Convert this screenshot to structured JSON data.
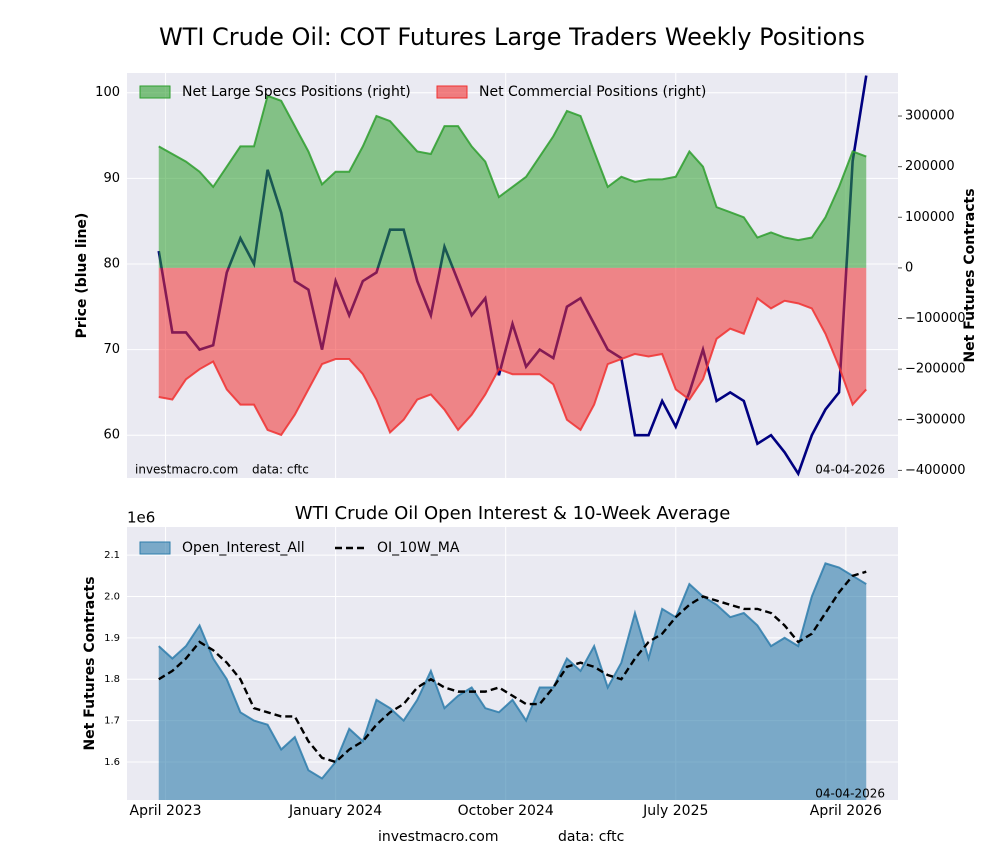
{
  "title": "WTI Crude Oil: COT Futures Large Traders Weekly Positions",
  "footer": [
    "investmacro.com",
    "data: cftc"
  ],
  "chart_data": [
    {
      "type": "line",
      "y_label": "Price (blue line)",
      "y2_label": "Net Futures Contracts",
      "watermark": [
        "investmacro.com",
        "data: cftc",
        "04-04-2026"
      ],
      "x": [
        2023.22,
        2023.28,
        2023.34,
        2023.4,
        2023.46,
        2023.52,
        2023.58,
        2023.64,
        2023.7,
        2023.76,
        2023.82,
        2023.88,
        2023.94,
        2024.0,
        2024.06,
        2024.12,
        2024.18,
        2024.24,
        2024.3,
        2024.36,
        2024.42,
        2024.48,
        2024.54,
        2024.6,
        2024.66,
        2024.72,
        2024.78,
        2024.84,
        2024.9,
        2024.96,
        2025.02,
        2025.08,
        2025.14,
        2025.2,
        2025.26,
        2025.32,
        2025.38,
        2025.44,
        2025.5,
        2025.56,
        2025.62,
        2025.68,
        2025.74,
        2025.8,
        2025.86,
        2025.92,
        2025.98,
        2026.04,
        2026.1,
        2026.16,
        2026.22,
        2026.28,
        2026.34
      ],
      "xlim": [
        2023.08,
        2026.48
      ],
      "xticks": [
        2023.25,
        2024.0,
        2024.75,
        2025.5,
        2026.25
      ],
      "ylim": [
        55,
        102.3
      ],
      "yticks": [
        60,
        70,
        80,
        90,
        100
      ],
      "y2lim": [
        -415000,
        385000
      ],
      "y2ticks": [
        {
          "value": -400000,
          "label": "−400000"
        },
        {
          "value": -300000,
          "label": "−300000"
        },
        {
          "value": -200000,
          "label": "−200000"
        },
        {
          "value": -100000,
          "label": "−100000"
        },
        0,
        100000,
        200000,
        300000
      ],
      "grid": true,
      "legend": "upper left",
      "price": {
        "color": "#000080",
        "values": [
          81.5,
          72,
          72,
          70,
          70.5,
          79,
          83,
          80,
          91,
          86,
          78,
          77,
          70,
          78,
          74,
          78,
          79,
          84,
          84,
          78,
          74,
          82,
          78,
          74,
          76,
          67,
          73,
          68,
          70,
          69,
          75,
          76,
          73,
          70,
          69,
          60,
          60,
          64,
          61,
          65,
          70,
          64,
          65,
          64,
          59,
          60,
          58,
          55.5,
          60,
          63,
          65,
          92,
          102
        ]
      },
      "series": [
        {
          "name": "Net Large Specs Positions (right)",
          "color": "#2e9e2e",
          "axis": "y2",
          "values": [
            240000,
            225000,
            210000,
            190000,
            160000,
            200000,
            240000,
            240000,
            340000,
            330000,
            280000,
            230000,
            165000,
            190000,
            190000,
            240000,
            300000,
            290000,
            260000,
            230000,
            225000,
            280000,
            280000,
            240000,
            210000,
            140000,
            160000,
            180000,
            220000,
            260000,
            310000,
            300000,
            230000,
            160000,
            180000,
            170000,
            175000,
            175000,
            180000,
            230000,
            200000,
            120000,
            110000,
            100000,
            60000,
            70000,
            60000,
            55000,
            60000,
            100000,
            160000,
            230000,
            220000
          ]
        },
        {
          "name": "Net Commercial Positions (right)",
          "color": "#f03030",
          "axis": "y2",
          "values": [
            -255000,
            -260000,
            -220000,
            -200000,
            -185000,
            -240000,
            -270000,
            -270000,
            -320000,
            -330000,
            -290000,
            -240000,
            -190000,
            -180000,
            -180000,
            -210000,
            -260000,
            -325000,
            -300000,
            -260000,
            -250000,
            -280000,
            -320000,
            -290000,
            -250000,
            -200000,
            -210000,
            -210000,
            -210000,
            -230000,
            -300000,
            -320000,
            -270000,
            -190000,
            -180000,
            -170000,
            -175000,
            -170000,
            -240000,
            -260000,
            -220000,
            -140000,
            -120000,
            -130000,
            -60000,
            -80000,
            -65000,
            -70000,
            -80000,
            -130000,
            -195000,
            -270000,
            -240000
          ]
        }
      ]
    },
    {
      "type": "area",
      "title": "WTI Crude Oil Open Interest & 10-Week Average",
      "y_label": "Net Futures Contracts",
      "y_offset_label": "1e6",
      "watermark": [
        "04-04-2026"
      ],
      "x": [
        2023.22,
        2023.28,
        2023.34,
        2023.4,
        2023.46,
        2023.52,
        2023.58,
        2023.64,
        2023.7,
        2023.76,
        2023.82,
        2023.88,
        2023.94,
        2024.0,
        2024.06,
        2024.12,
        2024.18,
        2024.24,
        2024.3,
        2024.36,
        2024.42,
        2024.48,
        2024.54,
        2024.6,
        2024.66,
        2024.72,
        2024.78,
        2024.84,
        2024.9,
        2024.96,
        2025.02,
        2025.08,
        2025.14,
        2025.2,
        2025.26,
        2025.32,
        2025.38,
        2025.44,
        2025.5,
        2025.56,
        2025.62,
        2025.68,
        2025.74,
        2025.8,
        2025.86,
        2025.92,
        2025.98,
        2026.04,
        2026.1,
        2026.16,
        2026.22,
        2026.28,
        2026.34
      ],
      "xlim": [
        2023.08,
        2026.48
      ],
      "xticks": [
        {
          "value": 2023.25,
          "label": "April 2023"
        },
        {
          "value": 2024.0,
          "label": "January 2024"
        },
        {
          "value": 2024.75,
          "label": "October 2024"
        },
        {
          "value": 2025.5,
          "label": "July 2025"
        },
        {
          "value": 2026.25,
          "label": "April 2026"
        }
      ],
      "ylim": [
        1.508,
        2.168
      ],
      "yticks": [
        1.6,
        1.7,
        1.8,
        1.9,
        {
          "value": 2,
          "label": "2.0"
        },
        2.1
      ],
      "grid": true,
      "legend": "upper left",
      "series": [
        {
          "name": "Open_Interest_All",
          "color": "#2e7dab",
          "style": "area",
          "values": [
            1.88,
            1.85,
            1.88,
            1.93,
            1.85,
            1.8,
            1.72,
            1.7,
            1.69,
            1.63,
            1.66,
            1.58,
            1.56,
            1.6,
            1.68,
            1.65,
            1.75,
            1.73,
            1.7,
            1.75,
            1.82,
            1.73,
            1.76,
            1.78,
            1.73,
            1.72,
            1.75,
            1.7,
            1.78,
            1.78,
            1.85,
            1.82,
            1.88,
            1.78,
            1.84,
            1.96,
            1.85,
            1.97,
            1.95,
            2.03,
            2.0,
            1.98,
            1.95,
            1.96,
            1.93,
            1.88,
            1.9,
            1.88,
            2.0,
            2.08,
            2.07,
            2.05,
            2.03
          ]
        },
        {
          "name": "OI_10W_MA",
          "color": "#000000",
          "style": "dashed",
          "values": [
            1.8,
            1.82,
            1.85,
            1.89,
            1.87,
            1.84,
            1.8,
            1.73,
            1.72,
            1.71,
            1.71,
            1.65,
            1.61,
            1.6,
            1.63,
            1.65,
            1.69,
            1.72,
            1.74,
            1.78,
            1.8,
            1.78,
            1.77,
            1.77,
            1.77,
            1.78,
            1.76,
            1.74,
            1.74,
            1.78,
            1.83,
            1.84,
            1.83,
            1.81,
            1.8,
            1.85,
            1.89,
            1.91,
            1.95,
            1.98,
            2.0,
            1.99,
            1.98,
            1.97,
            1.97,
            1.96,
            1.93,
            1.89,
            1.91,
            1.96,
            2.01,
            2.05,
            2.06
          ]
        }
      ]
    }
  ]
}
